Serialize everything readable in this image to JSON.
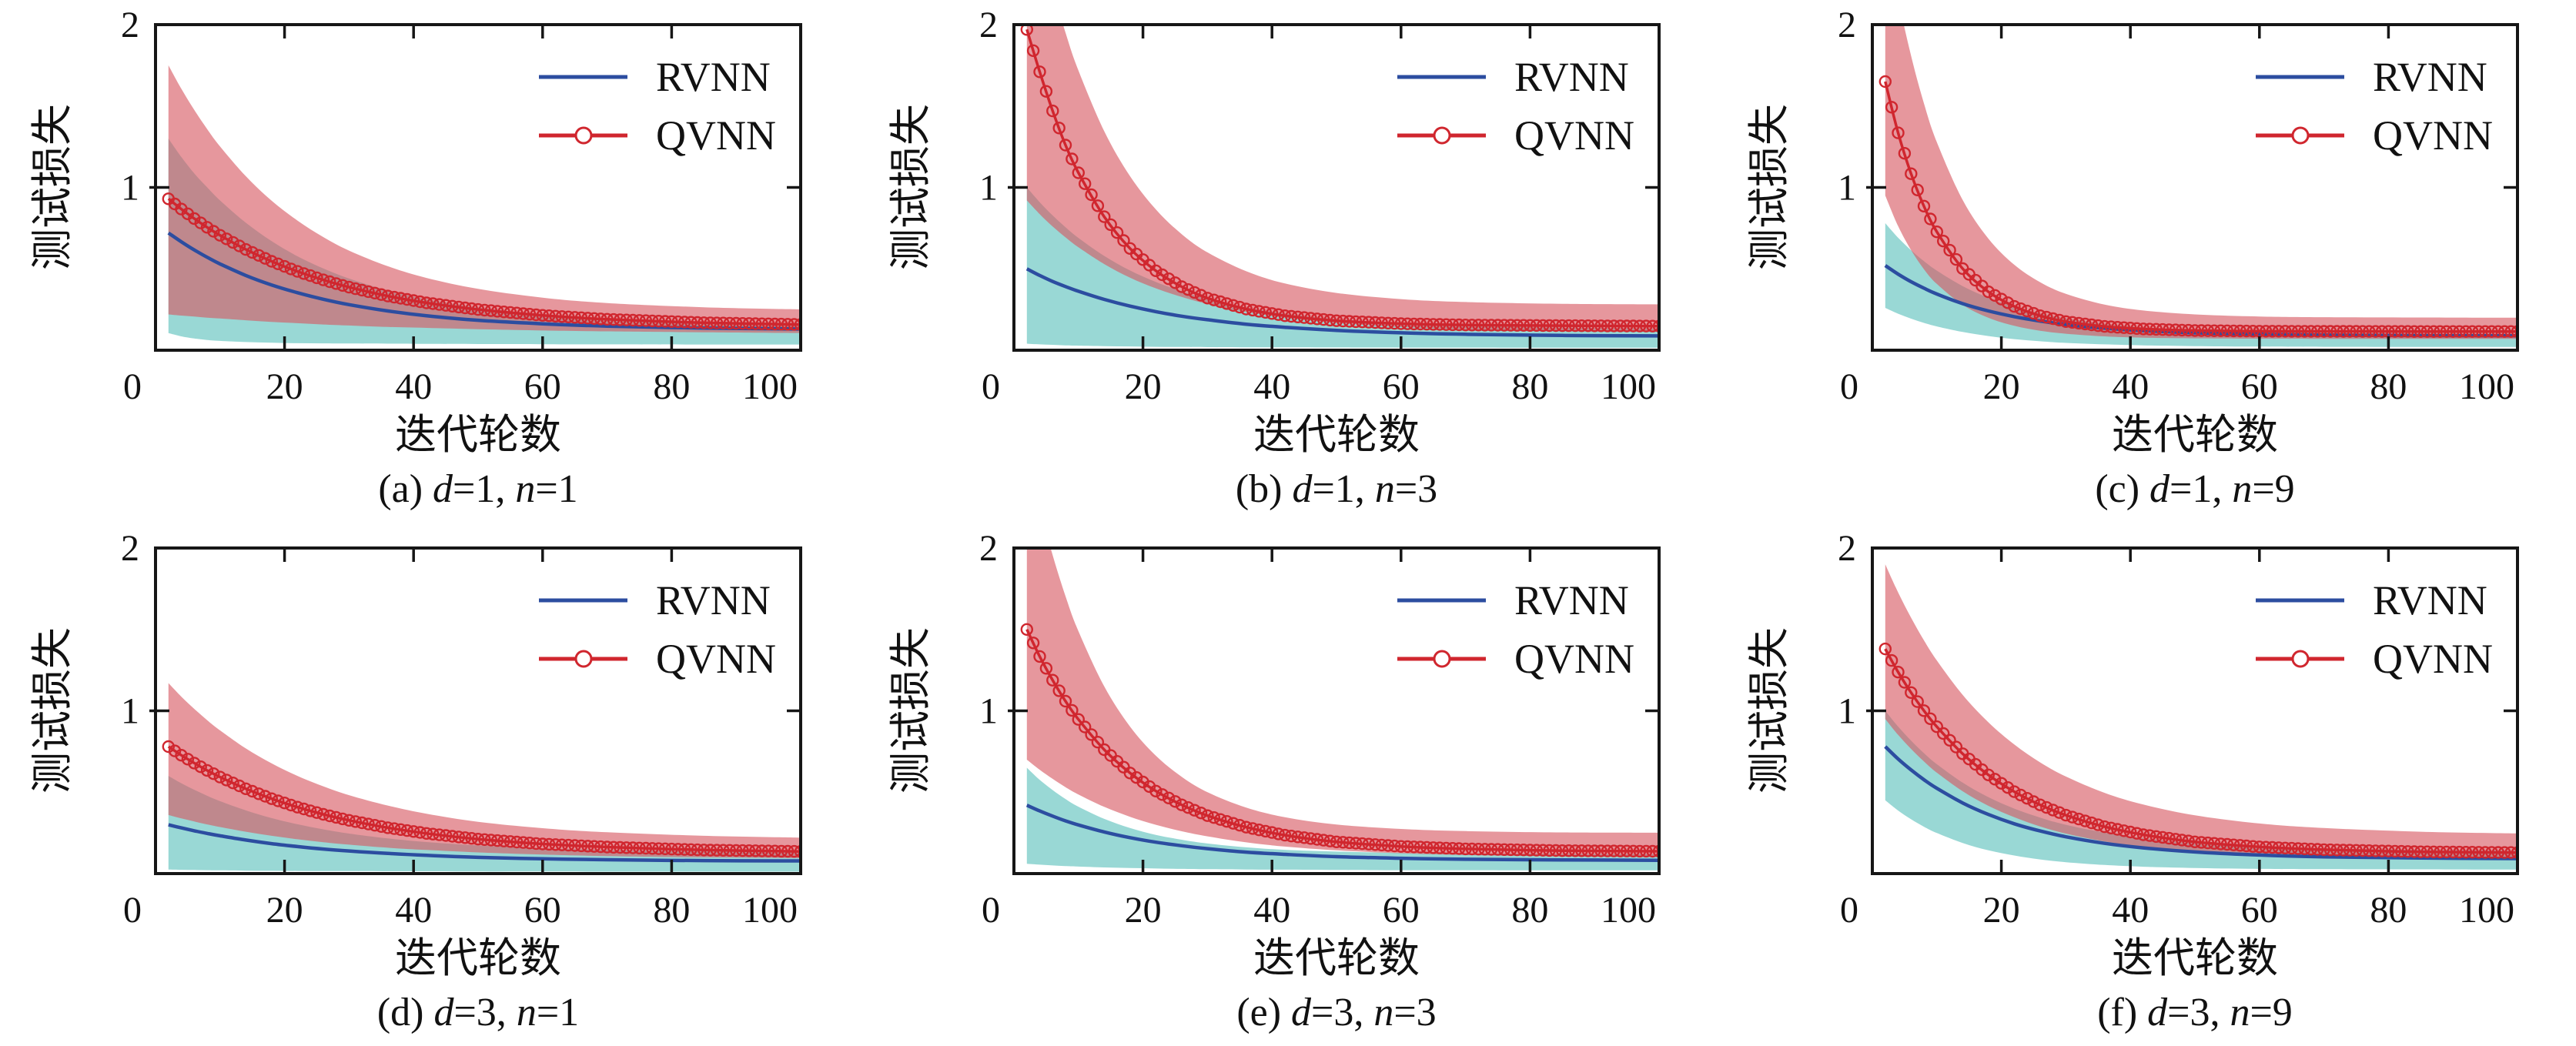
{
  "figure": {
    "ylabel": "测试损失",
    "xlabel": "迭代轮数",
    "legend": [
      {
        "label": "RVNN",
        "marker": "line"
      },
      {
        "label": "QVNN",
        "marker": "line-circle"
      }
    ],
    "axes": {
      "xlim": [
        0,
        100
      ],
      "ylim": [
        0,
        2
      ],
      "xticks": [
        0,
        20,
        40,
        60,
        80,
        100
      ],
      "yticks": [
        1,
        2
      ]
    },
    "colors": {
      "rvnn_line": "#2c4da0",
      "qvnn_line": "#d0262e",
      "rvnn_band": "#46b8b2",
      "qvnn_band": "#d65761",
      "rvnn_band_opacity": 0.55,
      "qvnn_band_opacity": 0.62,
      "axis": "#161616",
      "text": "#111111"
    }
  },
  "chart_data": [
    {
      "id": "a",
      "type": "line",
      "caption_text": "(a) d=1, n=1",
      "caption": {
        "prefix": "(a)",
        "d": "1",
        "n": "1"
      },
      "x": [
        2,
        4,
        6,
        8,
        10,
        14,
        18,
        22,
        26,
        30,
        36,
        42,
        50,
        60,
        70,
        85,
        100
      ],
      "series": [
        {
          "name": "RVNN",
          "values": [
            0.72,
            0.666,
            0.616,
            0.571,
            0.53,
            0.459,
            0.401,
            0.353,
            0.313,
            0.28,
            0.241,
            0.212,
            0.184,
            0.162,
            0.148,
            0.136,
            0.13
          ]
        },
        {
          "name": "QVNN",
          "values": [
            0.93,
            0.867,
            0.809,
            0.755,
            0.706,
            0.619,
            0.546,
            0.484,
            0.432,
            0.387,
            0.333,
            0.291,
            0.25,
            0.214,
            0.19,
            0.169,
            0.158
          ]
        }
      ],
      "bands": [
        {
          "name": "RVNN",
          "upper": [
            1.3,
            1.187,
            1.086,
            1.001,
            0.92,
            0.783,
            0.67,
            0.577,
            0.502,
            0.44,
            0.367,
            0.313,
            0.263,
            0.222,
            0.197,
            0.177,
            0.168
          ],
          "lower": [
            0.105,
            0.085,
            0.072,
            0.063,
            0.057,
            0.05,
            0.046,
            0.043,
            0.042,
            0.041,
            0.04,
            0.039,
            0.038,
            0.037,
            0.036,
            0.035,
            0.035
          ]
        },
        {
          "name": "QVNN",
          "upper": [
            1.75,
            1.606,
            1.476,
            1.359,
            1.252,
            1.069,
            0.918,
            0.796,
            0.695,
            0.612,
            0.516,
            0.444,
            0.377,
            0.323,
            0.29,
            0.264,
            0.251
          ],
          "lower": [
            0.22,
            0.213,
            0.207,
            0.2,
            0.195,
            0.184,
            0.174,
            0.166,
            0.158,
            0.152,
            0.143,
            0.137,
            0.129,
            0.121,
            0.116,
            0.11,
            0.106
          ]
        }
      ]
    },
    {
      "id": "b",
      "type": "line",
      "caption_text": "(b) d=1, n=3",
      "caption": {
        "prefix": "(b)",
        "d": "1",
        "n": "3"
      },
      "x": [
        2,
        4,
        6,
        8,
        10,
        14,
        18,
        22,
        26,
        30,
        36,
        42,
        50,
        60,
        70,
        85,
        100
      ],
      "series": [
        {
          "name": "RVNN",
          "values": [
            0.5,
            0.459,
            0.422,
            0.391,
            0.362,
            0.312,
            0.271,
            0.237,
            0.209,
            0.187,
            0.16,
            0.141,
            0.122,
            0.107,
            0.098,
            0.091,
            0.088
          ]
        },
        {
          "name": "QVNN",
          "values": [
            1.97,
            1.71,
            1.47,
            1.26,
            1.09,
            0.82,
            0.625,
            0.488,
            0.39,
            0.32,
            0.253,
            0.212,
            0.181,
            0.163,
            0.155,
            0.151,
            0.148
          ]
        }
      ],
      "bands": [
        {
          "name": "RVNN",
          "upper": [
            1.0,
            0.909,
            0.828,
            0.755,
            0.69,
            0.579,
            0.49,
            0.419,
            0.362,
            0.316,
            0.264,
            0.226,
            0.192,
            0.166,
            0.151,
            0.139,
            0.134
          ],
          "lower": [
            0.04,
            0.036,
            0.033,
            0.03,
            0.028,
            0.025,
            0.023,
            0.021,
            0.02,
            0.019,
            0.018,
            0.018,
            0.017,
            0.016,
            0.016,
            0.015,
            0.015
          ]
        },
        {
          "name": "QVNN",
          "upper": [
            2.9,
            2.535,
            2.221,
            1.951,
            1.718,
            1.345,
            1.069,
            0.865,
            0.713,
            0.601,
            0.485,
            0.41,
            0.352,
            0.314,
            0.296,
            0.285,
            0.282
          ],
          "lower": [
            0.92,
            0.836,
            0.76,
            0.693,
            0.632,
            0.529,
            0.446,
            0.38,
            0.327,
            0.284,
            0.235,
            0.2,
            0.168,
            0.143,
            0.129,
            0.119,
            0.114
          ]
        }
      ]
    },
    {
      "id": "c",
      "type": "line",
      "caption_text": "(c) d=1, n=9",
      "caption": {
        "prefix": "(c)",
        "d": "1",
        "n": "9"
      },
      "x": [
        2,
        4,
        6,
        8,
        10,
        14,
        18,
        22,
        26,
        30,
        36,
        42,
        50,
        60,
        70,
        85,
        100
      ],
      "series": [
        {
          "name": "RVNN",
          "values": [
            0.52,
            0.467,
            0.421,
            0.381,
            0.345,
            0.286,
            0.241,
            0.206,
            0.179,
            0.158,
            0.135,
            0.12,
            0.107,
            0.098,
            0.093,
            0.09,
            0.089
          ]
        },
        {
          "name": "QVNN",
          "values": [
            1.65,
            1.335,
            1.084,
            0.885,
            0.727,
            0.501,
            0.359,
            0.269,
            0.212,
            0.176,
            0.146,
            0.131,
            0.121,
            0.117,
            0.116,
            0.115,
            0.115
          ]
        }
      ],
      "bands": [
        {
          "name": "RVNN",
          "upper": [
            0.78,
            0.691,
            0.614,
            0.547,
            0.489,
            0.394,
            0.322,
            0.268,
            0.227,
            0.196,
            0.163,
            0.141,
            0.124,
            0.112,
            0.106,
            0.102,
            0.101
          ],
          "lower": [
            0.26,
            0.224,
            0.194,
            0.168,
            0.146,
            0.112,
            0.087,
            0.068,
            0.055,
            0.045,
            0.036,
            0.03,
            0.025,
            0.022,
            0.021,
            0.02,
            0.02
          ]
        },
        {
          "name": "QVNN",
          "upper": [
            2.6,
            2.165,
            1.809,
            1.517,
            1.278,
            0.923,
            0.685,
            0.525,
            0.418,
            0.346,
            0.28,
            0.244,
            0.22,
            0.207,
            0.203,
            0.201,
            0.2
          ],
          "lower": [
            0.95,
            0.762,
            0.615,
            0.498,
            0.407,
            0.279,
            0.199,
            0.15,
            0.119,
            0.101,
            0.085,
            0.077,
            0.073,
            0.071,
            0.07,
            0.07,
            0.07
          ]
        }
      ]
    },
    {
      "id": "d",
      "type": "line",
      "caption_text": "(d) d=3, n=1",
      "caption": {
        "prefix": "(d)",
        "d": "3",
        "n": "1"
      },
      "x": [
        2,
        4,
        6,
        8,
        10,
        14,
        18,
        22,
        26,
        30,
        36,
        42,
        50,
        60,
        70,
        85,
        100
      ],
      "series": [
        {
          "name": "RVNN",
          "values": [
            0.3,
            0.281,
            0.263,
            0.247,
            0.232,
            0.206,
            0.184,
            0.166,
            0.151,
            0.139,
            0.124,
            0.112,
            0.1,
            0.091,
            0.085,
            0.08,
            0.078
          ]
        },
        {
          "name": "QVNN",
          "values": [
            0.78,
            0.727,
            0.679,
            0.634,
            0.593,
            0.521,
            0.46,
            0.408,
            0.364,
            0.327,
            0.282,
            0.247,
            0.212,
            0.182,
            0.163,
            0.145,
            0.136
          ]
        }
      ],
      "bands": [
        {
          "name": "RVNN",
          "upper": [
            0.6,
            0.555,
            0.515,
            0.478,
            0.445,
            0.388,
            0.341,
            0.303,
            0.272,
            0.246,
            0.216,
            0.194,
            0.173,
            0.156,
            0.146,
            0.137,
            0.133
          ],
          "lower": [
            0.025,
            0.023,
            0.022,
            0.021,
            0.02,
            0.018,
            0.017,
            0.016,
            0.015,
            0.015,
            0.014,
            0.014,
            0.013,
            0.013,
            0.012,
            0.012,
            0.012
          ]
        },
        {
          "name": "QVNN",
          "upper": [
            1.17,
            1.087,
            1.012,
            0.943,
            0.88,
            0.769,
            0.677,
            0.6,
            0.536,
            0.482,
            0.418,
            0.368,
            0.318,
            0.279,
            0.254,
            0.232,
            0.221
          ],
          "lower": [
            0.36,
            0.339,
            0.32,
            0.302,
            0.286,
            0.257,
            0.232,
            0.211,
            0.193,
            0.178,
            0.159,
            0.145,
            0.13,
            0.117,
            0.108,
            0.1,
            0.095
          ]
        }
      ]
    },
    {
      "id": "e",
      "type": "line",
      "caption_text": "(e) d=3, n=3",
      "caption": {
        "prefix": "(e)",
        "d": "3",
        "n": "3"
      },
      "x": [
        2,
        4,
        6,
        8,
        10,
        14,
        18,
        22,
        26,
        30,
        36,
        42,
        50,
        60,
        70,
        85,
        100
      ],
      "series": [
        {
          "name": "RVNN",
          "values": [
            0.42,
            0.385,
            0.353,
            0.324,
            0.299,
            0.256,
            0.221,
            0.193,
            0.171,
            0.153,
            0.132,
            0.118,
            0.104,
            0.094,
            0.088,
            0.084,
            0.082
          ]
        },
        {
          "name": "QVNN",
          "values": [
            1.5,
            1.334,
            1.188,
            1.059,
            0.947,
            0.761,
            0.618,
            0.507,
            0.422,
            0.356,
            0.285,
            0.236,
            0.195,
            0.167,
            0.152,
            0.141,
            0.137
          ]
        }
      ],
      "bands": [
        {
          "name": "RVNN",
          "upper": [
            0.65,
            0.576,
            0.513,
            0.458,
            0.411,
            0.336,
            0.28,
            0.238,
            0.208,
            0.185,
            0.161,
            0.146,
            0.135,
            0.127,
            0.123,
            0.121,
            0.12
          ],
          "lower": [
            0.06,
            0.055,
            0.05,
            0.046,
            0.043,
            0.038,
            0.034,
            0.031,
            0.029,
            0.027,
            0.025,
            0.024,
            0.022,
            0.021,
            0.021,
            0.02,
            0.02
          ]
        },
        {
          "name": "QVNN",
          "upper": [
            2.6,
            2.253,
            1.956,
            1.704,
            1.489,
            1.15,
            0.903,
            0.724,
            0.595,
            0.5,
            0.405,
            0.346,
            0.301,
            0.274,
            0.261,
            0.253,
            0.251
          ],
          "lower": [
            0.7,
            0.638,
            0.582,
            0.531,
            0.486,
            0.41,
            0.349,
            0.3,
            0.26,
            0.229,
            0.192,
            0.166,
            0.143,
            0.125,
            0.114,
            0.106,
            0.103
          ]
        }
      ]
    },
    {
      "id": "f",
      "type": "line",
      "caption_text": "(f) d=3, n=9",
      "caption": {
        "prefix": "(f)",
        "d": "3",
        "n": "9"
      },
      "x": [
        2,
        4,
        6,
        8,
        10,
        14,
        18,
        22,
        26,
        30,
        36,
        42,
        50,
        60,
        70,
        85,
        100
      ],
      "series": [
        {
          "name": "RVNN",
          "values": [
            0.78,
            0.704,
            0.637,
            0.577,
            0.524,
            0.434,
            0.363,
            0.306,
            0.262,
            0.226,
            0.186,
            0.158,
            0.133,
            0.114,
            0.103,
            0.096,
            0.092
          ]
        },
        {
          "name": "QVNN",
          "values": [
            1.38,
            1.238,
            1.112,
            1.001,
            0.902,
            0.736,
            0.606,
            0.503,
            0.422,
            0.359,
            0.288,
            0.239,
            0.195,
            0.164,
            0.147,
            0.134,
            0.129
          ]
        }
      ],
      "bands": [
        {
          "name": "RVNN",
          "upper": [
            1.0,
            0.903,
            0.817,
            0.74,
            0.672,
            0.559,
            0.469,
            0.399,
            0.344,
            0.3,
            0.252,
            0.218,
            0.188,
            0.167,
            0.155,
            0.146,
            0.142
          ],
          "lower": [
            0.45,
            0.387,
            0.334,
            0.288,
            0.249,
            0.188,
            0.143,
            0.111,
            0.087,
            0.07,
            0.053,
            0.042,
            0.034,
            0.029,
            0.027,
            0.026,
            0.025
          ]
        },
        {
          "name": "QVNN",
          "upper": [
            1.9,
            1.727,
            1.572,
            1.433,
            1.309,
            1.098,
            0.929,
            0.793,
            0.683,
            0.596,
            0.496,
            0.424,
            0.358,
            0.308,
            0.28,
            0.257,
            0.247
          ],
          "lower": [
            0.95,
            0.852,
            0.766,
            0.689,
            0.62,
            0.506,
            0.416,
            0.346,
            0.29,
            0.246,
            0.197,
            0.163,
            0.134,
            0.112,
            0.1,
            0.091,
            0.087
          ]
        }
      ]
    }
  ]
}
